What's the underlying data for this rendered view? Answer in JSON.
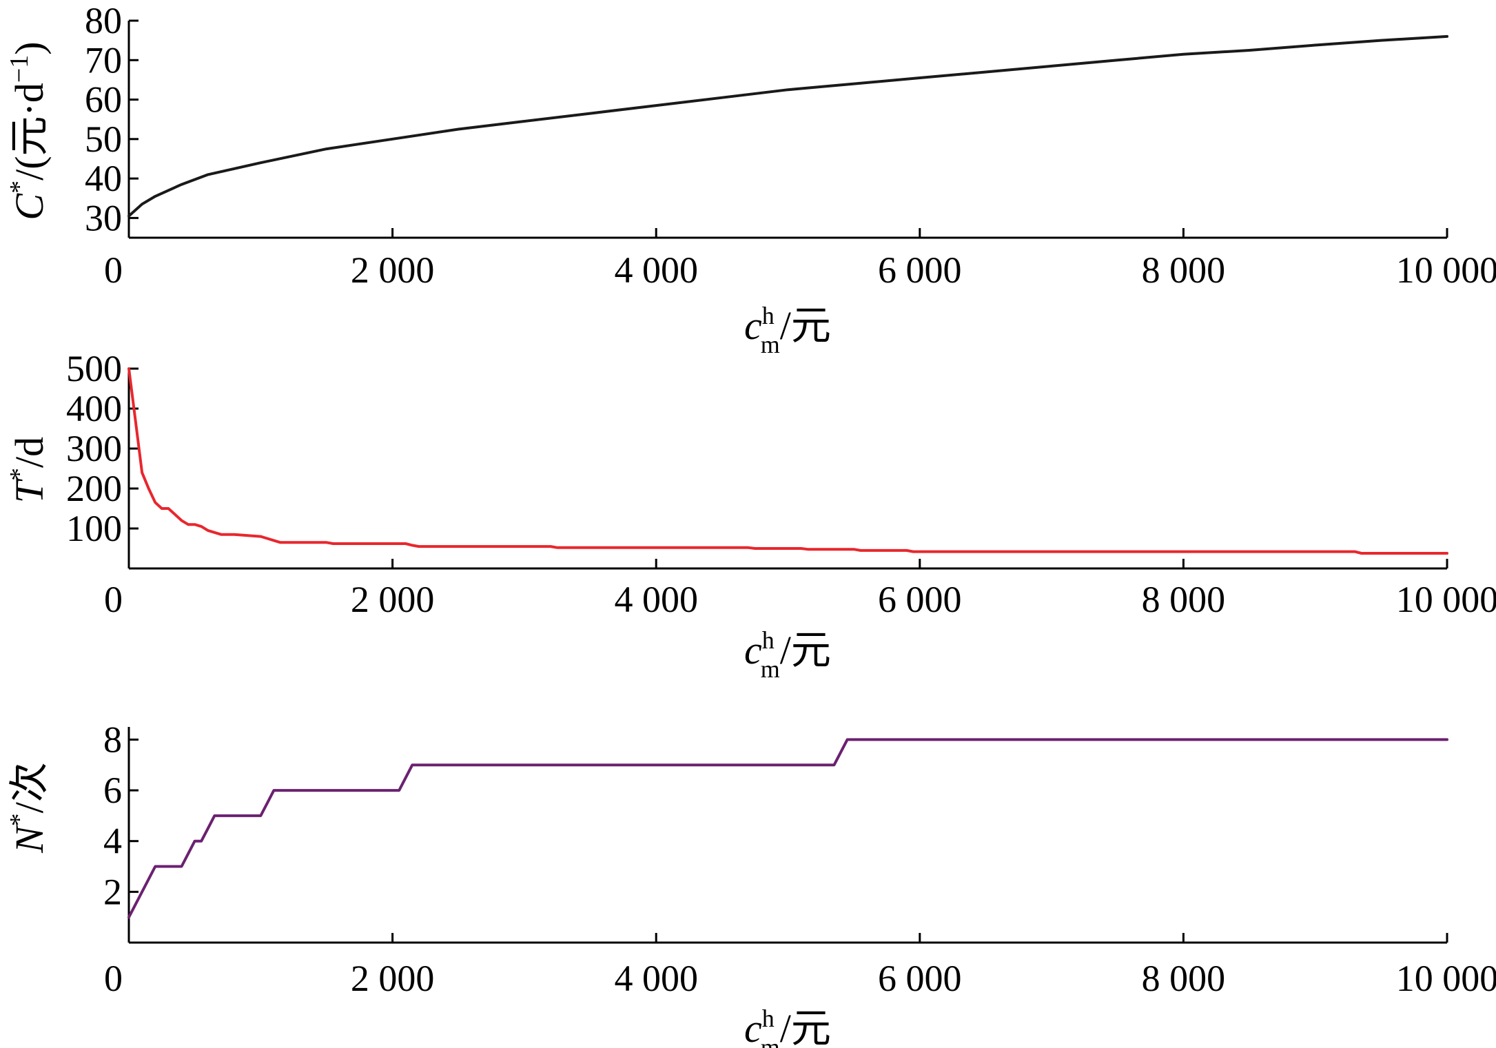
{
  "chart_data": [
    {
      "type": "line",
      "ylabel": {
        "main": "C",
        "sup": "*",
        "rest": "/(元·d",
        "exp": "−1",
        "close": ")"
      },
      "xlabel": {
        "main": "c",
        "sup": "h",
        "sub": "m",
        "rest": "/元"
      },
      "xlim": [
        0,
        10000
      ],
      "ylim": [
        25,
        80
      ],
      "xticks": [
        0,
        2000,
        4000,
        6000,
        8000,
        10000
      ],
      "xtick_labels": [
        "0",
        "2 000",
        "4 000",
        "6 000",
        "8 000",
        "10 000"
      ],
      "yticks": [
        30,
        40,
        50,
        60,
        70,
        80
      ],
      "ytick_labels": [
        "30",
        "40",
        "50",
        "60",
        "70",
        "80"
      ],
      "grid": false,
      "color": "#1a1a1a",
      "series": [
        {
          "x": [
            0,
            100,
            200,
            400,
            600,
            800,
            1000,
            1500,
            2000,
            2500,
            3000,
            3500,
            4000,
            4500,
            5000,
            5500,
            6000,
            6500,
            7000,
            7500,
            8000,
            8500,
            9000,
            9500,
            10000
          ],
          "values": [
            30.5,
            33.5,
            35.5,
            38.5,
            41,
            42.5,
            44,
            47.5,
            50,
            52.5,
            54.5,
            56.5,
            58.5,
            60.5,
            62.5,
            64,
            65.5,
            67,
            68.5,
            70,
            71.5,
            72.5,
            73.8,
            75,
            76
          ]
        }
      ]
    },
    {
      "type": "line",
      "ylabel": {
        "main": "T",
        "sup": "*",
        "rest": "/d"
      },
      "xlabel": {
        "main": "c",
        "sup": "h",
        "sub": "m",
        "rest": "/元"
      },
      "xlim": [
        0,
        10000
      ],
      "ylim": [
        0,
        500
      ],
      "xticks": [
        0,
        2000,
        4000,
        6000,
        8000,
        10000
      ],
      "xtick_labels": [
        "0",
        "2 000",
        "4 000",
        "6 000",
        "8 000",
        "10 000"
      ],
      "yticks": [
        100,
        200,
        300,
        400,
        500
      ],
      "ytick_labels": [
        "100",
        "200",
        "300",
        "400",
        "500"
      ],
      "grid": false,
      "color": "#e8272d",
      "series": [
        {
          "x": [
            0,
            50,
            100,
            150,
            200,
            250,
            300,
            350,
            400,
            450,
            500,
            550,
            600,
            650,
            700,
            800,
            1000,
            1050,
            1100,
            1150,
            1500,
            1550,
            2100,
            2150,
            2200,
            3200,
            3250,
            4700,
            4750,
            5100,
            5150,
            5500,
            5550,
            5900,
            5950,
            9300,
            9350,
            10000
          ],
          "values": [
            500,
            370,
            240,
            200,
            165,
            150,
            150,
            135,
            120,
            110,
            110,
            105,
            95,
            90,
            85,
            85,
            80,
            75,
            70,
            65,
            65,
            62,
            62,
            58,
            55,
            55,
            52,
            52,
            50,
            50,
            48,
            48,
            45,
            45,
            42,
            42,
            38,
            38
          ]
        }
      ]
    },
    {
      "type": "line",
      "ylabel": {
        "main": "N",
        "sup": "*",
        "rest": "/次"
      },
      "xlabel": {
        "main": "c",
        "sup": "h",
        "sub": "m",
        "rest": "/元"
      },
      "xlim": [
        0,
        10000
      ],
      "ylim": [
        0,
        8.5
      ],
      "xticks": [
        0,
        2000,
        4000,
        6000,
        8000,
        10000
      ],
      "xtick_labels": [
        "0",
        "2 000",
        "4 000",
        "6 000",
        "8 000",
        "10 000"
      ],
      "yticks": [
        2,
        4,
        6,
        8
      ],
      "ytick_labels": [
        "2",
        "4",
        "6",
        "8"
      ],
      "grid": false,
      "color": "#6b2170",
      "series": [
        {
          "x": [
            0,
            200,
            300,
            400,
            500,
            550,
            600,
            650,
            700,
            1000,
            1050,
            1100,
            2050,
            2150,
            5350,
            5450,
            10000
          ],
          "values": [
            1,
            3,
            3,
            3,
            4,
            4,
            4.5,
            5,
            5,
            5,
            5.5,
            6,
            6,
            7,
            7,
            8,
            8
          ]
        }
      ]
    }
  ]
}
